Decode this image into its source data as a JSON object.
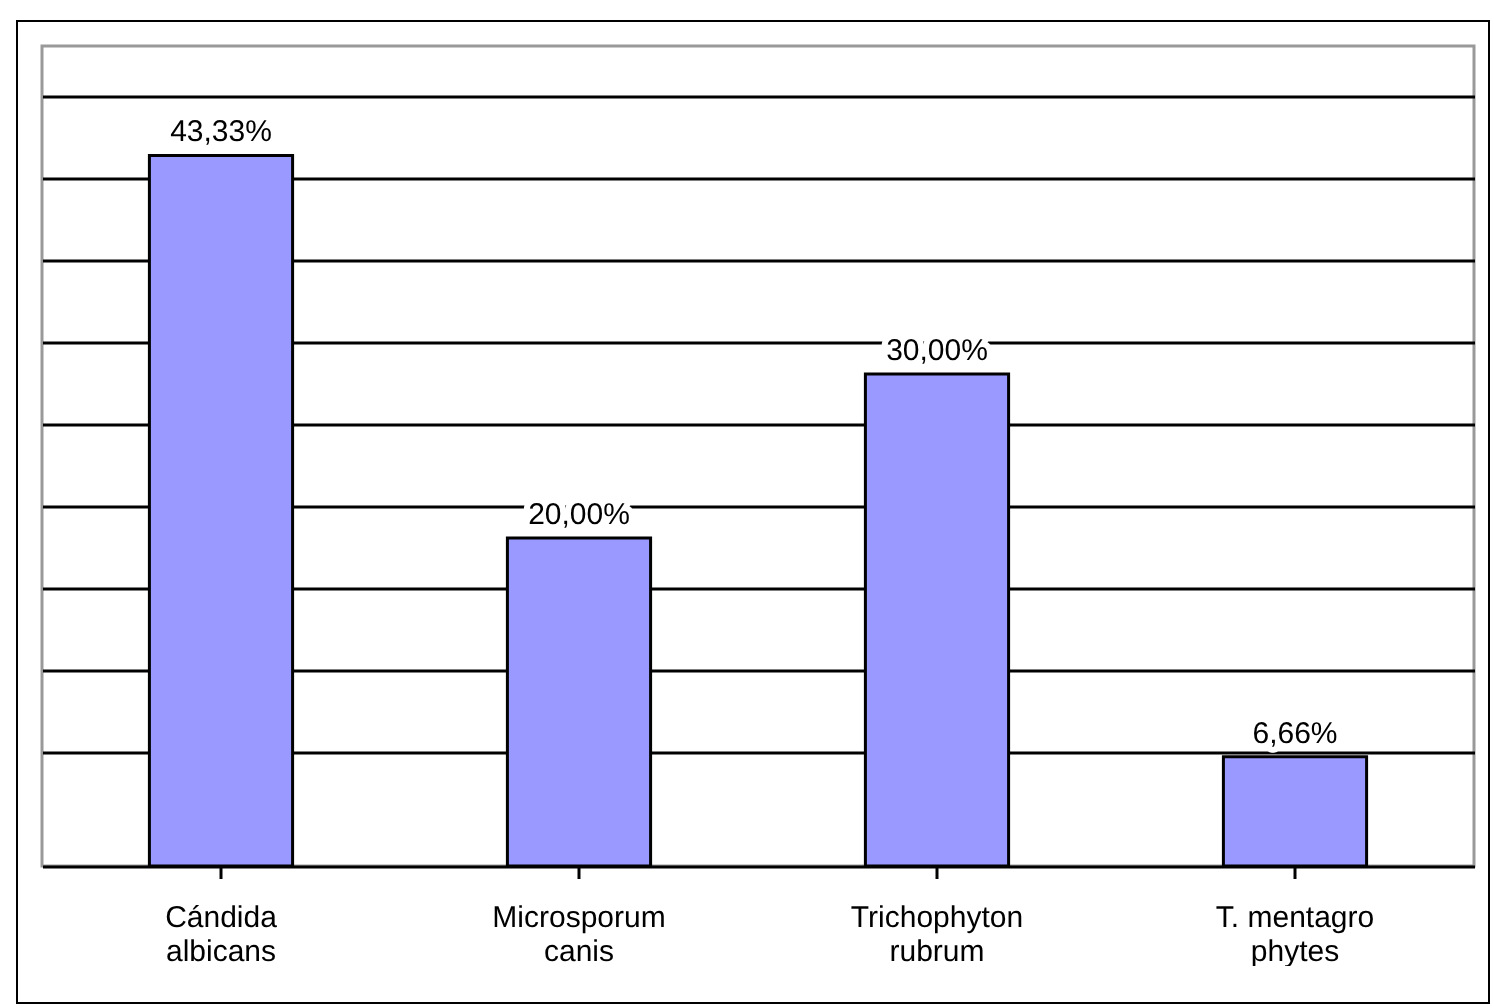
{
  "chart_data": {
    "type": "bar",
    "categories": [
      "Cándida albicans",
      "Microsporum canis",
      "Trichophyton rubrum",
      "T. mentagro phytes"
    ],
    "values": [
      43.33,
      20.0,
      30.0,
      6.66
    ],
    "value_labels": [
      "43,33%",
      "20,00%",
      "30,00%",
      "6,66%"
    ],
    "color": "#9999ff",
    "ylim": [
      0,
      50
    ],
    "yticks": [
      {
        "value": 7,
        "label": null
      },
      {
        "value": 12,
        "label": null
      },
      {
        "value": 17,
        "label": null
      },
      {
        "value": 22,
        "label": null
      },
      {
        "value": 27,
        "label": null
      },
      {
        "value": 32,
        "label": null
      },
      {
        "value": 37,
        "label": null
      },
      {
        "value": 42,
        "label": null
      },
      {
        "value": 47,
        "label": null
      }
    ],
    "grid": true,
    "tick_labels": "x"
  }
}
